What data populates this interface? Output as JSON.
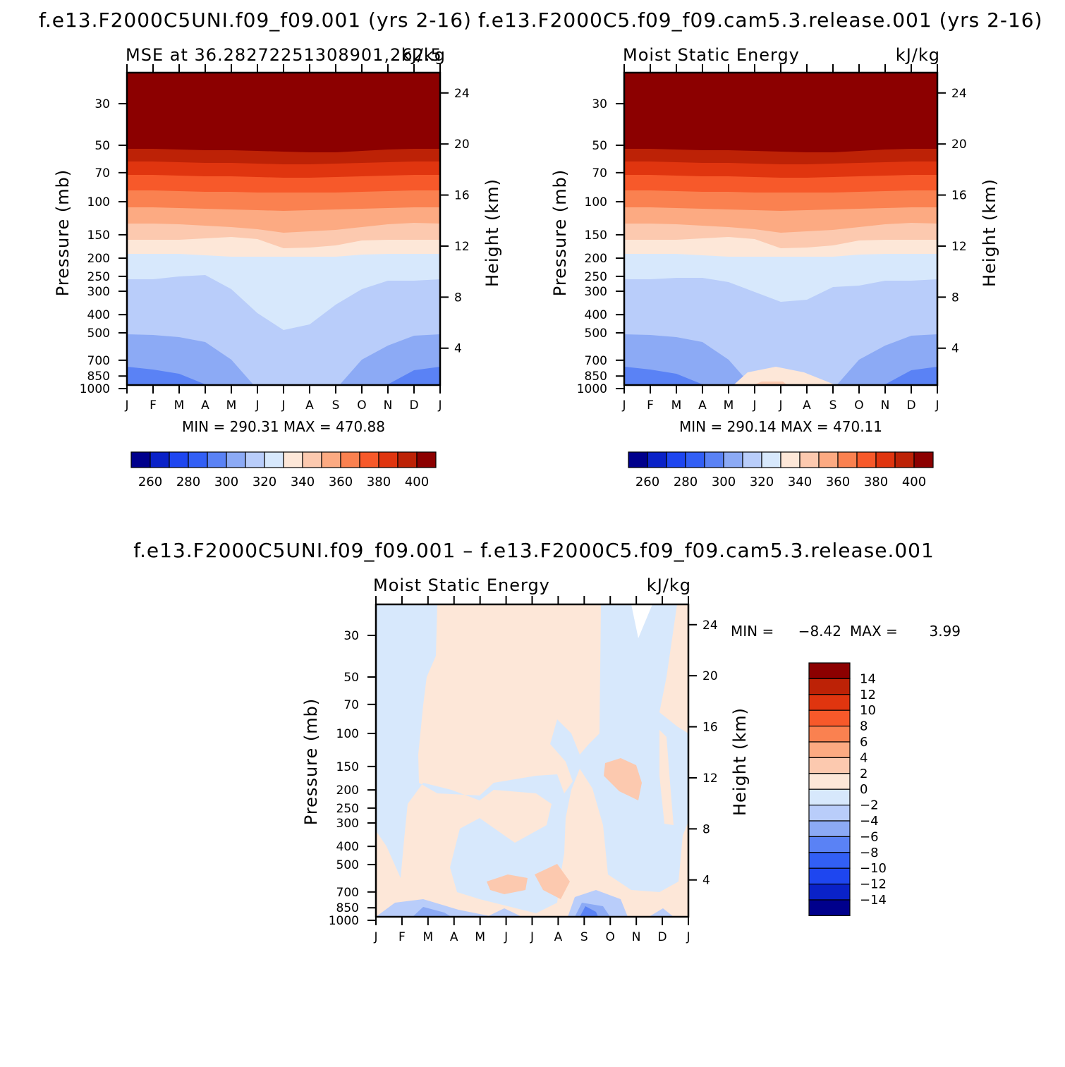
{
  "figure": {
    "title_left": "f.e13.F2000C5UNI.f09_f09.001  (yrs 2-16)",
    "title_right": "f.e13.F2000C5.f09_f09.cam5.3.release.001  (yrs 2-16)",
    "title_diff": "f.e13.F2000C5UNI.f09_f09.001 – f.e13.F2000C5.f09_f09.cam5.3.release.001"
  },
  "chart_data": [
    {
      "type": "heatmap",
      "subtitle_left": "MSE at 36.28272251308901,262.5",
      "subtitle_right": "kJ/kg",
      "ylabel": "Pressure (mb)",
      "ylabel_right": "Height (km)",
      "x_ticks": [
        "J",
        "F",
        "M",
        "A",
        "M",
        "J",
        "J",
        "A",
        "S",
        "O",
        "N",
        "D",
        "J"
      ],
      "pressure_ticks": [
        "30",
        "50",
        "70",
        "100",
        "150",
        "200",
        "250",
        "300",
        "400",
        "500",
        "700",
        "850",
        "1000"
      ],
      "height_ticks": [
        "24",
        "20",
        "16",
        "12",
        "8",
        "4"
      ],
      "stats": "MIN =  290.31  MAX =  470.88",
      "colorbar_labels": [
        "260",
        "280",
        "300",
        "320",
        "340",
        "360",
        "380",
        "400"
      ],
      "colorbar_colors": [
        "#00008c",
        "#0a22c8",
        "#1e46f0",
        "#325ff5",
        "#5a82f5",
        "#8caaf5",
        "#b9cdfa",
        "#d7e8fc",
        "#fde7d8",
        "#fcc9af",
        "#fcaa82",
        "#fa8150",
        "#f7592a",
        "#e0350f",
        "#bd2206",
        "#8c0000"
      ],
      "bands": [
        {
          "color": "#fde7d8",
          "top": [
            340,
            340,
            340,
            338,
            336,
            339,
            352,
            351,
            348,
            341,
            340,
            340,
            340
          ]
        },
        {
          "color": "#d7e8fc",
          "top": [
            360,
            360,
            360,
            362,
            364,
            364,
            364,
            364,
            364,
            361,
            360,
            360,
            360
          ]
        },
        {
          "color": "#b9cdfa",
          "top": [
            396,
            396,
            392,
            390,
            410,
            444,
            468,
            460,
            432,
            410,
            398,
            398,
            396
          ]
        },
        {
          "color": "#8caaf5",
          "top": [
            474,
            475,
            478,
            485,
            510,
            552,
            552,
            555,
            552,
            510,
            490,
            476,
            474
          ]
        },
        {
          "color": "#5a82f5",
          "top": [
            520,
            524,
            530,
            545,
            552,
            552,
            552,
            552,
            552,
            552,
            545,
            525,
            520
          ]
        },
        {
          "color": "#325ff5",
          "top": [
            552,
            552,
            552,
            552,
            552,
            552,
            552,
            552,
            552,
            552,
            552,
            552,
            552
          ]
        }
      ],
      "upper_bands": [
        {
          "color": "#fcc9af",
          "top": [
            317,
            317,
            318,
            320,
            322,
            325,
            330,
            328,
            326,
            322,
            318,
            316,
            317
          ]
        },
        {
          "color": "#fcaa82",
          "top": [
            294,
            294,
            295,
            296,
            297,
            298,
            299,
            298,
            297,
            296,
            295,
            294,
            294
          ]
        },
        {
          "color": "#fa8150",
          "top": [
            270,
            270,
            271,
            272,
            272,
            273,
            273,
            273,
            273,
            272,
            271,
            270,
            270
          ]
        },
        {
          "color": "#f7592a",
          "top": [
            248,
            248,
            249,
            250,
            250,
            251,
            252,
            252,
            251,
            250,
            249,
            248,
            248
          ]
        },
        {
          "color": "#e0350f",
          "top": [
            229,
            229,
            230,
            231,
            231,
            232,
            233,
            233,
            232,
            231,
            230,
            229,
            229
          ]
        },
        {
          "color": "#bd2206",
          "top": [
            211,
            211,
            212,
            213,
            213,
            214,
            215,
            216,
            216,
            214,
            212,
            211,
            211
          ]
        }
      ]
    },
    {
      "type": "heatmap",
      "subtitle_left": "Moist Static Energy",
      "subtitle_right": "kJ/kg",
      "ylabel": "Pressure (mb)",
      "ylabel_right": "Height (km)",
      "x_ticks": [
        "J",
        "F",
        "M",
        "A",
        "M",
        "J",
        "J",
        "A",
        "S",
        "O",
        "N",
        "D",
        "J"
      ],
      "pressure_ticks": [
        "30",
        "50",
        "70",
        "100",
        "150",
        "200",
        "250",
        "300",
        "400",
        "500",
        "700",
        "850",
        "1000"
      ],
      "height_ticks": [
        "24",
        "20",
        "16",
        "12",
        "8",
        "4"
      ],
      "stats": "MIN =  290.14  MAX =  470.11",
      "colorbar_labels": [
        "260",
        "280",
        "300",
        "320",
        "340",
        "360",
        "380",
        "400"
      ],
      "colorbar_colors": [
        "#00008c",
        "#0a22c8",
        "#1e46f0",
        "#325ff5",
        "#5a82f5",
        "#8caaf5",
        "#b9cdfa",
        "#d7e8fc",
        "#fde7d8",
        "#fcc9af",
        "#fcaa82",
        "#fa8150",
        "#f7592a",
        "#e0350f",
        "#bd2206",
        "#8c0000"
      ]
    },
    {
      "type": "heatmap",
      "subtitle_left": "Moist Static Energy",
      "subtitle_right": "kJ/kg",
      "ylabel": "Pressure (mb)",
      "ylabel_right": "Height (km)",
      "x_ticks": [
        "J",
        "F",
        "M",
        "A",
        "M",
        "J",
        "J",
        "A",
        "S",
        "O",
        "N",
        "D",
        "J"
      ],
      "pressure_ticks": [
        "30",
        "50",
        "70",
        "100",
        "150",
        "200",
        "250",
        "300",
        "400",
        "500",
        "700",
        "850",
        "1000"
      ],
      "height_ticks": [
        "24",
        "20",
        "16",
        "12",
        "8",
        "4"
      ],
      "stats_min_label": "MIN =",
      "stats_min": "−8.42",
      "stats_max_label": "MAX =",
      "stats_max": "3.99",
      "colorbar_labels": [
        "14",
        "12",
        "10",
        "8",
        "6",
        "4",
        "2",
        "0",
        "−2",
        "−4",
        "−6",
        "−8",
        "−10",
        "−12",
        "−14"
      ],
      "colorbar_colors": [
        "#8c0000",
        "#bd2206",
        "#e0350f",
        "#f7592a",
        "#fa8150",
        "#fcaa82",
        "#fcc9af",
        "#fde7d8",
        "#d7e8fc",
        "#b9cdfa",
        "#8caaf5",
        "#5a82f5",
        "#325ff5",
        "#1e46f0",
        "#0a22c8",
        "#00008c"
      ]
    }
  ]
}
